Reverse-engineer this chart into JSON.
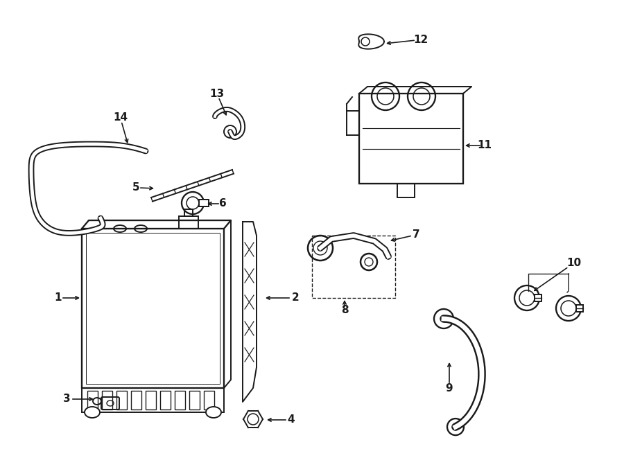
{
  "background_color": "#ffffff",
  "line_color": "#1a1a1a",
  "line_width": 1.4,
  "fig_width": 9.0,
  "fig_height": 6.61,
  "dpi": 100
}
